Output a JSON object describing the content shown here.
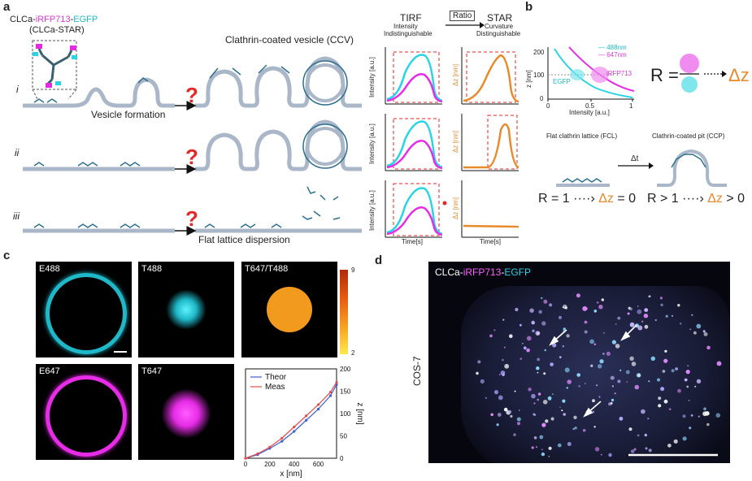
{
  "panels": {
    "a": "a",
    "b": "b",
    "c": "c",
    "d": "d"
  },
  "panel_a": {
    "probe_name_prefix": "CLCa-",
    "probe_name_irfp": "iRFP713",
    "probe_name_dash": "-",
    "probe_name_egfp": "EGFP",
    "probe_alias": "(CLCa-STAR)",
    "ccv_title": "Clathrin-coated vesicle (CCV)",
    "row_i": "i",
    "row_ii": "ii",
    "row_iii": "iii",
    "vesicle_formation": "Vesicle formation",
    "flat_lattice_dispersion": "Flat lattice dispersion",
    "question_mark": "?",
    "tirf": "TIRF",
    "tirf_sub1": "Intensity",
    "tirf_sub2": "Indistinguishable",
    "ratio": "Ratio",
    "star": "STAR",
    "star_sub1": "Curvature",
    "star_sub2": "Distinguishable",
    "ylabel_intensity": "Intensity [a.u.]",
    "ylabel_dz": "Δz [nm]",
    "xlabel_time": "Time[s]",
    "colors": {
      "cyan": "#29d4e6",
      "magenta": "#e62ce6",
      "orange": "#e88a2a",
      "red": "#e32727",
      "membrane": "#a9b7c8",
      "clathrin": "#2d6f8f"
    }
  },
  "panel_b": {
    "legend_488": "488nm",
    "legend_647": "647nm",
    "label_egfp": "EGFP",
    "label_irfp": "iRFP713",
    "y_axis": "z [nm]",
    "x_axis": "Intensity [a.u.]",
    "y_ticks": [
      "0",
      "100",
      "200"
    ],
    "x_ticks": [
      "0",
      "0.5",
      "1"
    ],
    "r_equals": "R =",
    "dz": "Δz",
    "fcl_title": "Flat clathrin lattice (FCL)",
    "ccp_title": "Clathrin-coated pit (CCP)",
    "dt": "Δt",
    "fcl_eq_a": "R = 1",
    "fcl_eq_b": "Δz",
    "fcl_eq_c": "= 0",
    "ccp_eq_a": "R > 1",
    "ccp_eq_b": "Δz",
    "ccp_eq_c": "> 0"
  },
  "panel_c": {
    "tiles": {
      "e488": "E488",
      "t488": "T488",
      "ratio": "T647/T488",
      "e647": "E647",
      "t647": "T647"
    },
    "colorbar_top": "9",
    "colorbar_bottom": "2",
    "chart_data": {
      "type": "line",
      "series": [
        {
          "name": "Theor",
          "x": [
            0,
            100,
            200,
            300,
            400,
            500,
            600,
            700,
            750
          ],
          "values": [
            0,
            8,
            22,
            38,
            60,
            85,
            110,
            140,
            165
          ]
        },
        {
          "name": "Meas",
          "x": [
            0,
            100,
            200,
            300,
            400,
            500,
            600,
            700,
            750
          ],
          "values": [
            0,
            10,
            25,
            45,
            70,
            95,
            120,
            148,
            170
          ]
        }
      ],
      "xlabel": "x [nm]",
      "ylabel": "z [nm]",
      "xlim": [
        0,
        750
      ],
      "ylim": [
        0,
        200
      ],
      "x_ticks": [
        0,
        200,
        400,
        600
      ],
      "y_ticks": [
        0,
        50,
        100,
        150,
        200
      ],
      "legend_position": "top-left"
    }
  },
  "panel_d": {
    "title_prefix": "CLCa-",
    "title_irfp": "iRFP713",
    "title_dash": "-",
    "title_egfp": "EGFP",
    "cell_line": "COS-7"
  }
}
